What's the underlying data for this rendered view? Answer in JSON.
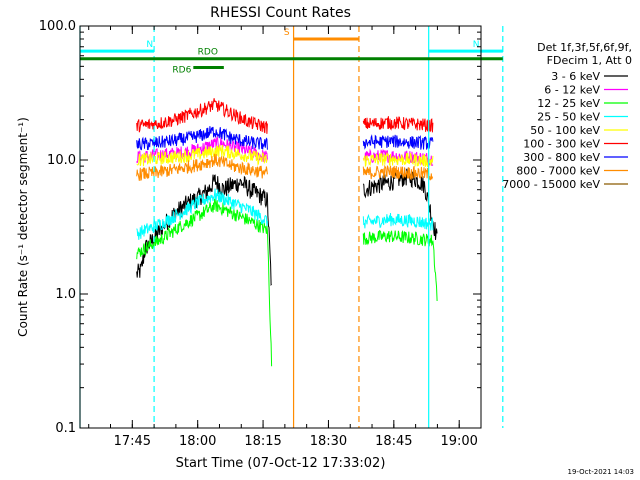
{
  "chart_data": {
    "type": "line",
    "title": "RHESSI Count Rates",
    "xlabel": "Start Time (07-Oct-12 17:33:02)",
    "ylabel": "Count Rate (s⁻¹ detector segment⁻¹)",
    "y_scale": "log",
    "ylim": [
      0.1,
      100.0
    ],
    "y_ticks": [
      "0.1",
      "1.0",
      "10.0",
      "100.0"
    ],
    "x_ticks": [
      "17:45",
      "18:00",
      "18:15",
      "18:30",
      "18:45",
      "19:00"
    ],
    "xlim_minutes_of_day": [
      1053,
      1145
    ],
    "legend_header": [
      "Det 1f,3f,5f,6f,9f,",
      "FDecim 1, Att 0"
    ],
    "legend_position": "right",
    "series": [
      {
        "name": "3 - 6 keV",
        "color": "#000000",
        "segments": [
          {
            "x": [
              "17:46",
              "17:47",
              "17:48",
              "17:50",
              "17:52",
              "17:54",
              "17:56",
              "17:58",
              "18:00",
              "18:02",
              "18:04",
              "18:06",
              "18:08",
              "18:10",
              "18:12",
              "18:14",
              "18:16",
              "18:17"
            ],
            "y": [
              1.4,
              1.5,
              2.2,
              2.6,
              3.2,
              3.8,
              4.3,
              4.8,
              5.2,
              5.8,
              7.0,
              6.0,
              6.5,
              6.8,
              6.0,
              5.5,
              5.0,
              1.0
            ]
          },
          {
            "x": [
              "18:38",
              "18:40",
              "18:42",
              "18:44",
              "18:46",
              "18:48",
              "18:50",
              "18:52",
              "18:54",
              "18:55"
            ],
            "y": [
              6.0,
              6.3,
              6.6,
              6.8,
              7.2,
              7.5,
              7.2,
              6.5,
              3.5,
              2.5
            ]
          }
        ]
      },
      {
        "name": "6 - 12 keV",
        "color": "#ff00ff",
        "segments": [
          {
            "x": [
              "17:46",
              "17:50",
              "17:55",
              "18:00",
              "18:05",
              "18:08",
              "18:12",
              "18:16"
            ],
            "y": [
              10.5,
              10.8,
              11.2,
              12.0,
              13.5,
              12.5,
              11.5,
              10.5
            ]
          },
          {
            "x": [
              "18:38",
              "18:44",
              "18:50",
              "18:54"
            ],
            "y": [
              10.5,
              10.8,
              10.5,
              10.2
            ]
          }
        ]
      },
      {
        "name": "12 - 25 keV",
        "color": "#00ff00",
        "segments": [
          {
            "x": [
              "17:46",
              "17:48",
              "17:52",
              "17:56",
              "18:00",
              "18:04",
              "18:08",
              "18:12",
              "18:16",
              "18:17"
            ],
            "y": [
              2.0,
              2.2,
              2.6,
              3.2,
              3.8,
              4.6,
              4.0,
              3.5,
              3.0,
              0.27
            ]
          },
          {
            "x": [
              "18:38",
              "18:44",
              "18:50",
              "18:54",
              "18:55"
            ],
            "y": [
              2.6,
              2.7,
              2.6,
              2.5,
              0.9
            ]
          }
        ]
      },
      {
        "name": "25 - 50 keV",
        "color": "#00ffff",
        "segments": [
          {
            "x": [
              "17:46",
              "17:48",
              "17:52",
              "17:56",
              "18:00",
              "18:04",
              "18:08",
              "18:12",
              "18:16"
            ],
            "y": [
              2.8,
              3.0,
              3.4,
              4.0,
              4.8,
              5.5,
              4.8,
              4.2,
              3.5
            ]
          },
          {
            "x": [
              "18:38",
              "18:44",
              "18:50",
              "18:54"
            ],
            "y": [
              3.4,
              3.6,
              3.5,
              3.3
            ]
          }
        ]
      },
      {
        "name": "50 - 100 keV",
        "color": "#ffff00",
        "segments": [
          {
            "x": [
              "17:46",
              "17:50",
              "17:55",
              "18:00",
              "18:05",
              "18:10",
              "18:16"
            ],
            "y": [
              10.0,
              10.2,
              10.5,
              11.0,
              11.8,
              11.0,
              10.0
            ]
          },
          {
            "x": [
              "18:38",
              "18:44",
              "18:50",
              "18:54"
            ],
            "y": [
              10.0,
              10.2,
              10.0,
              9.8
            ]
          }
        ]
      },
      {
        "name": "100 - 300 keV",
        "color": "#ff0000",
        "segments": [
          {
            "x": [
              "17:46",
              "17:50",
              "17:55",
              "18:00",
              "18:04",
              "18:08",
              "18:12",
              "18:16"
            ],
            "y": [
              18.0,
              18.5,
              20.0,
              23.0,
              26.0,
              22.0,
              19.0,
              17.5
            ]
          },
          {
            "x": [
              "18:38",
              "18:44",
              "18:50",
              "18:54"
            ],
            "y": [
              18.5,
              19.0,
              18.5,
              18.0
            ]
          }
        ]
      },
      {
        "name": "300 - 800 keV",
        "color": "#0000ff",
        "segments": [
          {
            "x": [
              "17:46",
              "17:50",
              "17:55",
              "18:00",
              "18:04",
              "18:08",
              "18:12",
              "18:16"
            ],
            "y": [
              13.0,
              13.3,
              14.0,
              15.0,
              16.5,
              14.5,
              13.5,
              13.0
            ]
          },
          {
            "x": [
              "18:38",
              "18:44",
              "18:50",
              "18:54"
            ],
            "y": [
              13.5,
              13.8,
              13.5,
              13.2
            ]
          }
        ]
      },
      {
        "name": "800 - 7000 keV",
        "color": "#ff8c00",
        "segments": [
          {
            "x": [
              "17:46",
              "17:50",
              "17:55",
              "18:00",
              "18:04",
              "18:08",
              "18:12",
              "18:16"
            ],
            "y": [
              7.8,
              8.0,
              8.5,
              9.2,
              10.0,
              9.0,
              8.5,
              8.0
            ]
          },
          {
            "x": [
              "18:38",
              "18:44",
              "18:50",
              "18:54"
            ],
            "y": [
              8.0,
              8.2,
              8.0,
              7.8
            ]
          }
        ]
      },
      {
        "name": "7000 - 15000 keV",
        "color": "#8b5a00",
        "segments": []
      }
    ],
    "annotations": [
      {
        "label": "N",
        "color": "#00ffff",
        "x_start": "17:33",
        "x_end": "17:50",
        "y": 65
      },
      {
        "label": "N",
        "color": "#00ffff",
        "x_start": "18:53",
        "x_end": "19:10",
        "y": 65
      },
      {
        "label": "S",
        "color": "#ff8c00",
        "x_start": "18:22",
        "x_end": "18:37",
        "y": 80
      },
      {
        "label": "RDO",
        "color": "#008000",
        "x_start": "17:33",
        "x_end": "19:10",
        "y": 57
      },
      {
        "label": "RD6",
        "color": "#008000",
        "x_start": "17:59",
        "x_end": "18:06",
        "y": 49
      }
    ],
    "vlines": [
      {
        "x": "17:33",
        "color": "#00ffff",
        "style": "solid"
      },
      {
        "x": "17:50",
        "color": "#00ffff",
        "style": "dashed"
      },
      {
        "x": "18:22",
        "color": "#ff8c00",
        "style": "solid"
      },
      {
        "x": "18:37",
        "color": "#ff8c00",
        "style": "dashed"
      },
      {
        "x": "18:53",
        "color": "#00ffff",
        "style": "solid"
      },
      {
        "x": "19:10",
        "color": "#00ffff",
        "style": "dashed"
      }
    ]
  },
  "footer": {
    "timestamp": "19-Oct-2021 14:03"
  }
}
